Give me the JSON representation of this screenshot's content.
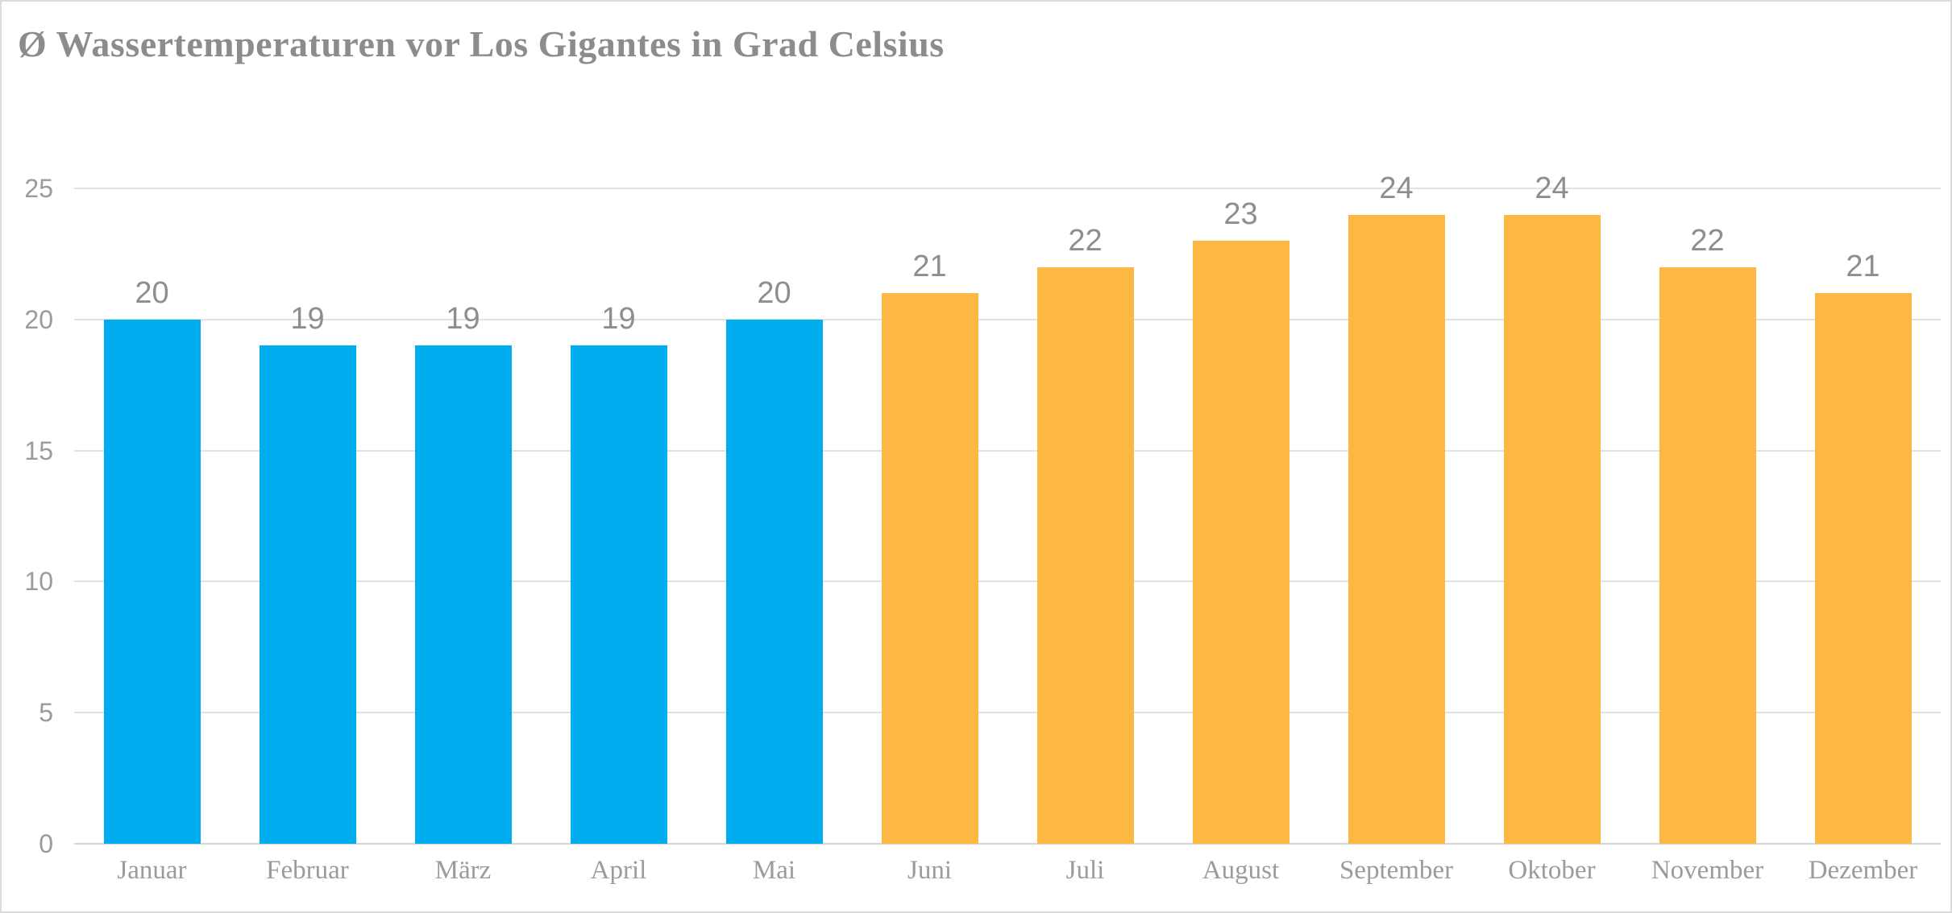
{
  "chart_data": {
    "type": "bar",
    "title": "Ø Wassertemperaturen vor Los Gigantes in Grad Celsius",
    "categories": [
      "Januar",
      "Februar",
      "März",
      "April",
      "Mai",
      "Juni",
      "Juli",
      "August",
      "September",
      "Oktober",
      "November",
      "Dezember"
    ],
    "values": [
      20,
      19,
      19,
      19,
      20,
      21,
      22,
      23,
      24,
      24,
      22,
      21
    ],
    "bar_colors": [
      "#00AEEF",
      "#00AEEF",
      "#00AEEF",
      "#00AEEF",
      "#00AEEF",
      "#FDB843",
      "#FDB843",
      "#FDB843",
      "#FDB843",
      "#FDB843",
      "#FDB843",
      "#FDB843"
    ],
    "palette": {
      "cooler_months_blue": "#00AEEF",
      "warmer_months_orange": "#FDB843"
    },
    "y_ticks": [
      0,
      5,
      10,
      15,
      20,
      25
    ],
    "ylim": [
      0,
      25
    ],
    "xlabel": "",
    "ylabel": "",
    "grid": "horizontal",
    "legend": "none",
    "data_labels": "value shown above each bar",
    "colors": {
      "title_text": "#8C8C8C",
      "axis_label_text": "#9B9B9B",
      "data_label_text": "#8E8E8E",
      "gridline": "#E2E2E2",
      "baseline": "#D6D6D6",
      "page_border": "#DBDBDB",
      "background": "#FFFFFF"
    }
  }
}
